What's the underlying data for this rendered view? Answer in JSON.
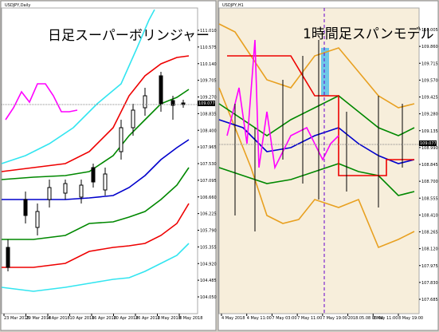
{
  "left": {
    "title": "USDJPY,Daily",
    "overlay": "日足スーパーボリンジャー",
    "current_price": "109.077",
    "price_labels": [
      "111.010",
      "110.575",
      "110.140",
      "109.705",
      "109.270",
      "108.835",
      "108.400",
      "107.965",
      "107.530",
      "107.095",
      "106.660",
      "106.225",
      "105.790",
      "105.355",
      "104.920",
      "104.485",
      "104.050"
    ],
    "dates": [
      "23 Mar 2018",
      "29 Mar 2018",
      "4 Apr 2018",
      "10 Apr 2018",
      "16 Apr 2018",
      "20 Apr 2018",
      "26 Apr 2018",
      "2 May 2018",
      "8 May 2018"
    ]
  },
  "right": {
    "title": "USDJPY,H1",
    "overlay": "1時間足スパンモデル",
    "current_price": "109.077",
    "price_labels": [
      "110.005",
      "109.860",
      "109.715",
      "109.570",
      "109.425",
      "109.280",
      "109.135",
      "108.990",
      "108.845",
      "108.700",
      "108.555",
      "108.410",
      "108.265",
      "108.120",
      "107.975",
      "107.830",
      "107.685"
    ],
    "dates": [
      "4 May 2018",
      "4 May 11:00",
      "7 May 03:00",
      "7 May 11:00",
      "7 May 19:00",
      "2018.05.08 03:00",
      "8 May 11:00",
      "8 May 19:00"
    ]
  }
}
